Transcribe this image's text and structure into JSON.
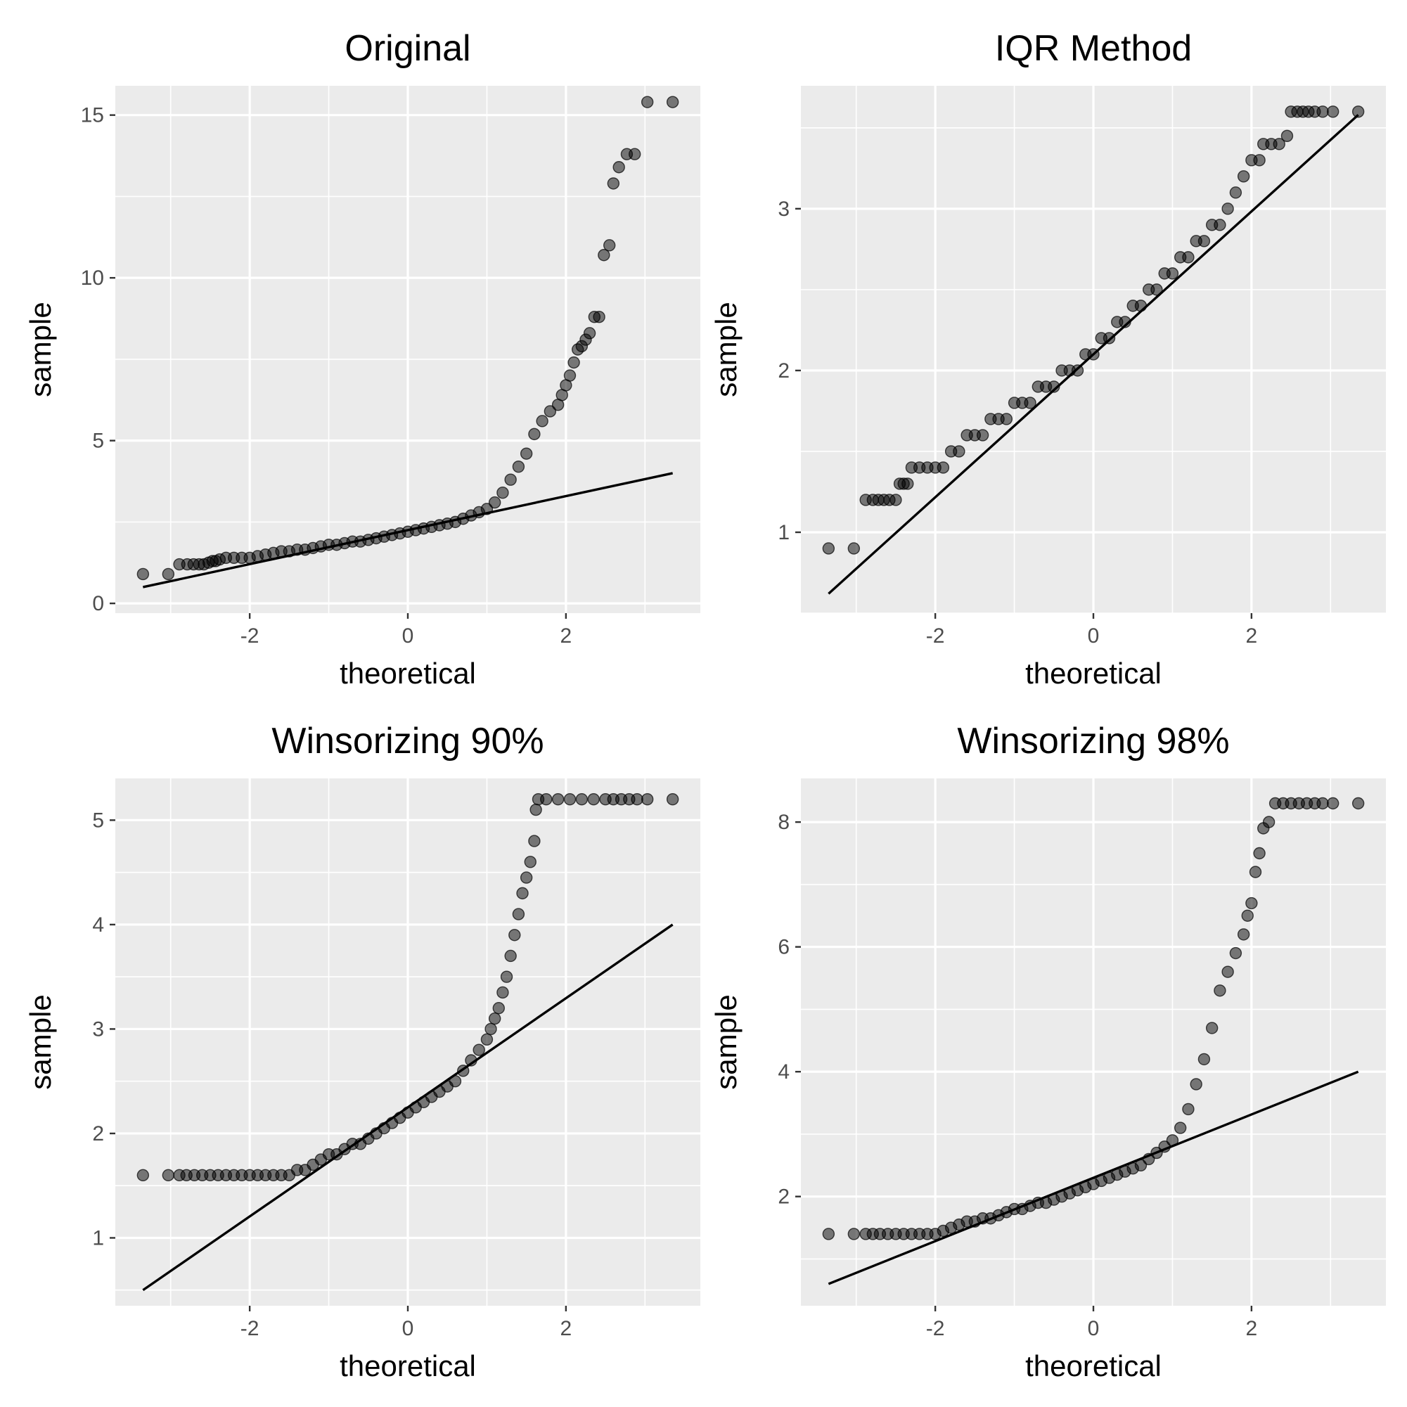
{
  "chart_data": [
    {
      "type": "scatter",
      "title": "Original",
      "xlabel": "theoretical",
      "ylabel": "sample",
      "xlim": [
        -3.7,
        3.7
      ],
      "ylim": [
        -0.3,
        15.9
      ],
      "x_ticks": [
        -2,
        0,
        2
      ],
      "y_ticks": [
        0,
        5,
        10,
        15
      ],
      "grid": true,
      "reference_line": {
        "x": [
          -3.35,
          3.35
        ],
        "y": [
          0.5,
          4.0
        ]
      },
      "points": [
        [
          -3.35,
          0.9
        ],
        [
          -3.03,
          0.9
        ],
        [
          -2.89,
          1.2
        ],
        [
          -2.79,
          1.2
        ],
        [
          -2.71,
          1.2
        ],
        [
          -2.64,
          1.2
        ],
        [
          -2.58,
          1.2
        ],
        [
          -2.52,
          1.25
        ],
        [
          -2.47,
          1.3
        ],
        [
          -2.43,
          1.3
        ],
        [
          -2.38,
          1.35
        ],
        [
          -2.3,
          1.4
        ],
        [
          -2.2,
          1.4
        ],
        [
          -2.1,
          1.4
        ],
        [
          -2.0,
          1.4
        ],
        [
          -1.9,
          1.45
        ],
        [
          -1.8,
          1.5
        ],
        [
          -1.7,
          1.55
        ],
        [
          -1.6,
          1.6
        ],
        [
          -1.5,
          1.6
        ],
        [
          -1.4,
          1.65
        ],
        [
          -1.3,
          1.65
        ],
        [
          -1.2,
          1.7
        ],
        [
          -1.1,
          1.75
        ],
        [
          -1.0,
          1.8
        ],
        [
          -0.9,
          1.8
        ],
        [
          -0.8,
          1.85
        ],
        [
          -0.7,
          1.9
        ],
        [
          -0.6,
          1.9
        ],
        [
          -0.5,
          1.95
        ],
        [
          -0.4,
          2.0
        ],
        [
          -0.3,
          2.05
        ],
        [
          -0.2,
          2.1
        ],
        [
          -0.1,
          2.15
        ],
        [
          0.0,
          2.2
        ],
        [
          0.1,
          2.25
        ],
        [
          0.2,
          2.3
        ],
        [
          0.3,
          2.35
        ],
        [
          0.4,
          2.4
        ],
        [
          0.5,
          2.45
        ],
        [
          0.6,
          2.5
        ],
        [
          0.7,
          2.6
        ],
        [
          0.8,
          2.7
        ],
        [
          0.9,
          2.8
        ],
        [
          1.0,
          2.9
        ],
        [
          1.1,
          3.1
        ],
        [
          1.2,
          3.4
        ],
        [
          1.3,
          3.8
        ],
        [
          1.4,
          4.2
        ],
        [
          1.5,
          4.6
        ],
        [
          1.6,
          5.2
        ],
        [
          1.7,
          5.6
        ],
        [
          1.8,
          5.9
        ],
        [
          1.9,
          6.1
        ],
        [
          1.95,
          6.4
        ],
        [
          2.0,
          6.7
        ],
        [
          2.05,
          7.0
        ],
        [
          2.1,
          7.4
        ],
        [
          2.15,
          7.8
        ],
        [
          2.2,
          7.9
        ],
        [
          2.25,
          8.1
        ],
        [
          2.3,
          8.3
        ],
        [
          2.36,
          8.8
        ],
        [
          2.42,
          8.8
        ],
        [
          2.48,
          10.7
        ],
        [
          2.55,
          11.0
        ],
        [
          2.6,
          12.9
        ],
        [
          2.67,
          13.4
        ],
        [
          2.77,
          13.8
        ],
        [
          2.87,
          13.8
        ],
        [
          3.03,
          15.4
        ],
        [
          3.35,
          15.4
        ]
      ]
    },
    {
      "type": "scatter",
      "title": "IQR Method",
      "xlabel": "theoretical",
      "ylabel": "sample",
      "xlim": [
        -3.7,
        3.7
      ],
      "ylim": [
        0.5,
        3.76
      ],
      "x_ticks": [
        -2,
        0,
        2
      ],
      "y_ticks": [
        1,
        2,
        3
      ],
      "grid": true,
      "reference_line": {
        "x": [
          -3.35,
          3.35
        ],
        "y": [
          0.62,
          3.58
        ]
      },
      "points": [
        [
          -3.35,
          0.9
        ],
        [
          -3.03,
          0.9
        ],
        [
          -2.88,
          1.2
        ],
        [
          -2.79,
          1.2
        ],
        [
          -2.72,
          1.2
        ],
        [
          -2.65,
          1.2
        ],
        [
          -2.58,
          1.2
        ],
        [
          -2.5,
          1.2
        ],
        [
          -2.45,
          1.3
        ],
        [
          -2.4,
          1.3
        ],
        [
          -2.35,
          1.3
        ],
        [
          -2.3,
          1.4
        ],
        [
          -2.2,
          1.4
        ],
        [
          -2.1,
          1.4
        ],
        [
          -2.0,
          1.4
        ],
        [
          -1.9,
          1.4
        ],
        [
          -1.8,
          1.5
        ],
        [
          -1.7,
          1.5
        ],
        [
          -1.6,
          1.6
        ],
        [
          -1.5,
          1.6
        ],
        [
          -1.4,
          1.6
        ],
        [
          -1.3,
          1.7
        ],
        [
          -1.2,
          1.7
        ],
        [
          -1.1,
          1.7
        ],
        [
          -1.0,
          1.8
        ],
        [
          -0.9,
          1.8
        ],
        [
          -0.8,
          1.8
        ],
        [
          -0.7,
          1.9
        ],
        [
          -0.6,
          1.9
        ],
        [
          -0.5,
          1.9
        ],
        [
          -0.4,
          2.0
        ],
        [
          -0.3,
          2.0
        ],
        [
          -0.2,
          2.0
        ],
        [
          -0.1,
          2.1
        ],
        [
          0.0,
          2.1
        ],
        [
          0.1,
          2.2
        ],
        [
          0.2,
          2.2
        ],
        [
          0.3,
          2.3
        ],
        [
          0.4,
          2.3
        ],
        [
          0.5,
          2.4
        ],
        [
          0.6,
          2.4
        ],
        [
          0.7,
          2.5
        ],
        [
          0.8,
          2.5
        ],
        [
          0.9,
          2.6
        ],
        [
          1.0,
          2.6
        ],
        [
          1.1,
          2.7
        ],
        [
          1.2,
          2.7
        ],
        [
          1.3,
          2.8
        ],
        [
          1.4,
          2.8
        ],
        [
          1.5,
          2.9
        ],
        [
          1.6,
          2.9
        ],
        [
          1.7,
          3.0
        ],
        [
          1.8,
          3.1
        ],
        [
          1.9,
          3.2
        ],
        [
          2.0,
          3.3
        ],
        [
          2.1,
          3.3
        ],
        [
          2.15,
          3.4
        ],
        [
          2.25,
          3.4
        ],
        [
          2.35,
          3.4
        ],
        [
          2.45,
          3.45
        ],
        [
          2.5,
          3.6
        ],
        [
          2.58,
          3.6
        ],
        [
          2.65,
          3.6
        ],
        [
          2.72,
          3.6
        ],
        [
          2.8,
          3.6
        ],
        [
          2.9,
          3.6
        ],
        [
          3.03,
          3.6
        ],
        [
          3.35,
          3.6
        ]
      ]
    },
    {
      "type": "scatter",
      "title": "Winsorizing 90%",
      "xlabel": "theoretical",
      "ylabel": "sample",
      "xlim": [
        -3.7,
        3.7
      ],
      "ylim": [
        0.35,
        5.4
      ],
      "x_ticks": [
        -2,
        0,
        2
      ],
      "y_ticks": [
        1,
        2,
        3,
        4,
        5
      ],
      "grid": true,
      "reference_line": {
        "x": [
          -3.35,
          3.35
        ],
        "y": [
          0.5,
          4.0
        ]
      },
      "points": [
        [
          -3.35,
          1.6
        ],
        [
          -3.03,
          1.6
        ],
        [
          -2.89,
          1.6
        ],
        [
          -2.8,
          1.6
        ],
        [
          -2.7,
          1.6
        ],
        [
          -2.6,
          1.6
        ],
        [
          -2.5,
          1.6
        ],
        [
          -2.4,
          1.6
        ],
        [
          -2.3,
          1.6
        ],
        [
          -2.2,
          1.6
        ],
        [
          -2.1,
          1.6
        ],
        [
          -2.0,
          1.6
        ],
        [
          -1.9,
          1.6
        ],
        [
          -1.8,
          1.6
        ],
        [
          -1.7,
          1.6
        ],
        [
          -1.6,
          1.6
        ],
        [
          -1.5,
          1.6
        ],
        [
          -1.4,
          1.65
        ],
        [
          -1.3,
          1.65
        ],
        [
          -1.2,
          1.7
        ],
        [
          -1.1,
          1.75
        ],
        [
          -1.0,
          1.8
        ],
        [
          -0.9,
          1.8
        ],
        [
          -0.8,
          1.85
        ],
        [
          -0.7,
          1.9
        ],
        [
          -0.6,
          1.9
        ],
        [
          -0.5,
          1.95
        ],
        [
          -0.4,
          2.0
        ],
        [
          -0.3,
          2.05
        ],
        [
          -0.2,
          2.1
        ],
        [
          -0.1,
          2.15
        ],
        [
          0.0,
          2.2
        ],
        [
          0.1,
          2.25
        ],
        [
          0.2,
          2.3
        ],
        [
          0.3,
          2.35
        ],
        [
          0.4,
          2.4
        ],
        [
          0.5,
          2.45
        ],
        [
          0.6,
          2.5
        ],
        [
          0.7,
          2.6
        ],
        [
          0.8,
          2.7
        ],
        [
          0.9,
          2.8
        ],
        [
          1.0,
          2.9
        ],
        [
          1.05,
          3.0
        ],
        [
          1.1,
          3.1
        ],
        [
          1.15,
          3.2
        ],
        [
          1.2,
          3.35
        ],
        [
          1.25,
          3.5
        ],
        [
          1.3,
          3.7
        ],
        [
          1.35,
          3.9
        ],
        [
          1.4,
          4.1
        ],
        [
          1.45,
          4.3
        ],
        [
          1.5,
          4.45
        ],
        [
          1.55,
          4.6
        ],
        [
          1.6,
          4.8
        ],
        [
          1.62,
          5.1
        ],
        [
          1.65,
          5.2
        ],
        [
          1.75,
          5.2
        ],
        [
          1.9,
          5.2
        ],
        [
          2.05,
          5.2
        ],
        [
          2.2,
          5.2
        ],
        [
          2.35,
          5.2
        ],
        [
          2.5,
          5.2
        ],
        [
          2.6,
          5.2
        ],
        [
          2.7,
          5.2
        ],
        [
          2.8,
          5.2
        ],
        [
          2.9,
          5.2
        ],
        [
          3.03,
          5.2
        ],
        [
          3.35,
          5.2
        ]
      ]
    },
    {
      "type": "scatter",
      "title": "Winsorizing 98%",
      "xlabel": "theoretical",
      "ylabel": "sample",
      "xlim": [
        -3.7,
        3.7
      ],
      "ylim": [
        0.25,
        8.7
      ],
      "x_ticks": [
        -2,
        0,
        2
      ],
      "y_ticks": [
        2,
        4,
        6,
        8
      ],
      "grid": true,
      "reference_line": {
        "x": [
          -3.35,
          3.35
        ],
        "y": [
          0.6,
          4.0
        ]
      },
      "points": [
        [
          -3.35,
          1.4
        ],
        [
          -3.03,
          1.4
        ],
        [
          -2.88,
          1.4
        ],
        [
          -2.79,
          1.4
        ],
        [
          -2.7,
          1.4
        ],
        [
          -2.6,
          1.4
        ],
        [
          -2.5,
          1.4
        ],
        [
          -2.4,
          1.4
        ],
        [
          -2.3,
          1.4
        ],
        [
          -2.2,
          1.4
        ],
        [
          -2.1,
          1.4
        ],
        [
          -2.0,
          1.4
        ],
        [
          -1.9,
          1.45
        ],
        [
          -1.8,
          1.5
        ],
        [
          -1.7,
          1.55
        ],
        [
          -1.6,
          1.6
        ],
        [
          -1.5,
          1.6
        ],
        [
          -1.4,
          1.65
        ],
        [
          -1.3,
          1.65
        ],
        [
          -1.2,
          1.7
        ],
        [
          -1.1,
          1.75
        ],
        [
          -1.0,
          1.8
        ],
        [
          -0.9,
          1.8
        ],
        [
          -0.8,
          1.85
        ],
        [
          -0.7,
          1.9
        ],
        [
          -0.6,
          1.9
        ],
        [
          -0.5,
          1.95
        ],
        [
          -0.4,
          2.0
        ],
        [
          -0.3,
          2.05
        ],
        [
          -0.2,
          2.1
        ],
        [
          -0.1,
          2.15
        ],
        [
          0.0,
          2.2
        ],
        [
          0.1,
          2.25
        ],
        [
          0.2,
          2.3
        ],
        [
          0.3,
          2.35
        ],
        [
          0.4,
          2.4
        ],
        [
          0.5,
          2.45
        ],
        [
          0.6,
          2.5
        ],
        [
          0.7,
          2.6
        ],
        [
          0.8,
          2.7
        ],
        [
          0.9,
          2.8
        ],
        [
          1.0,
          2.9
        ],
        [
          1.1,
          3.1
        ],
        [
          1.2,
          3.4
        ],
        [
          1.3,
          3.8
        ],
        [
          1.4,
          4.2
        ],
        [
          1.5,
          4.7
        ],
        [
          1.6,
          5.3
        ],
        [
          1.7,
          5.6
        ],
        [
          1.8,
          5.9
        ],
        [
          1.9,
          6.2
        ],
        [
          1.95,
          6.5
        ],
        [
          2.0,
          6.7
        ],
        [
          2.05,
          7.2
        ],
        [
          2.1,
          7.5
        ],
        [
          2.15,
          7.9
        ],
        [
          2.22,
          8.0
        ],
        [
          2.3,
          8.3
        ],
        [
          2.4,
          8.3
        ],
        [
          2.5,
          8.3
        ],
        [
          2.6,
          8.3
        ],
        [
          2.7,
          8.3
        ],
        [
          2.8,
          8.3
        ],
        [
          2.9,
          8.3
        ],
        [
          3.03,
          8.3
        ],
        [
          3.35,
          8.3
        ]
      ]
    }
  ]
}
